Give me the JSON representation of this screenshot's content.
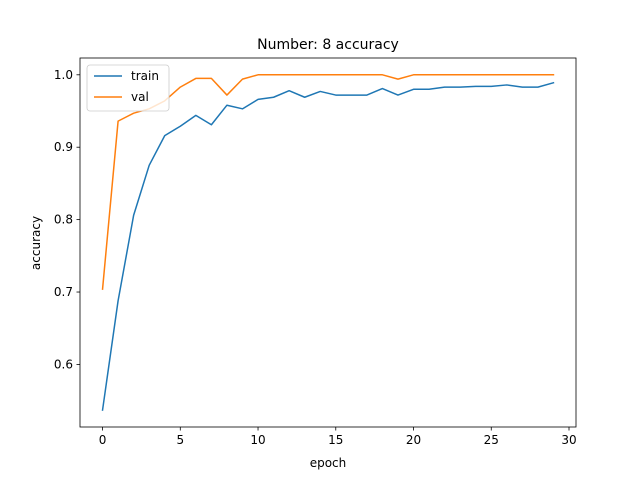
{
  "chart_data": {
    "type": "line",
    "title": "Number: 8 accuracy",
    "xlabel": "epoch",
    "ylabel": "accuracy",
    "xlim": [
      -1.45,
      30.45
    ],
    "ylim": [
      0.5136,
      1.0232
    ],
    "xticks": [
      0,
      5,
      10,
      15,
      20,
      25,
      30
    ],
    "yticks": [
      0.6,
      0.7,
      0.8,
      0.9,
      1.0
    ],
    "ytick_labels": [
      "0.6",
      "0.7",
      "0.8",
      "0.9",
      "1.0"
    ],
    "grid": false,
    "legend_position": "top-left",
    "x": [
      0,
      1,
      2,
      3,
      4,
      5,
      6,
      7,
      8,
      9,
      10,
      11,
      12,
      13,
      14,
      15,
      16,
      17,
      18,
      19,
      20,
      21,
      22,
      23,
      24,
      25,
      26,
      27,
      28,
      29
    ],
    "series": [
      {
        "name": "train",
        "color": "#1f77b4",
        "values": [
          0.537,
          0.688,
          0.806,
          0.875,
          0.916,
          0.929,
          0.944,
          0.931,
          0.958,
          0.953,
          0.966,
          0.969,
          0.978,
          0.969,
          0.977,
          0.972,
          0.972,
          0.972,
          0.981,
          0.972,
          0.98,
          0.98,
          0.983,
          0.983,
          0.984,
          0.984,
          0.986,
          0.983,
          0.983,
          0.989
        ]
      },
      {
        "name": "val",
        "color": "#ff7f0e",
        "values": [
          0.704,
          0.936,
          0.947,
          0.953,
          0.964,
          0.983,
          0.995,
          0.995,
          0.972,
          0.994,
          1.0,
          1.0,
          1.0,
          1.0,
          1.0,
          1.0,
          1.0,
          1.0,
          1.0,
          0.994,
          1.0,
          1.0,
          1.0,
          1.0,
          1.0,
          1.0,
          1.0,
          1.0,
          1.0,
          1.0
        ]
      }
    ]
  }
}
